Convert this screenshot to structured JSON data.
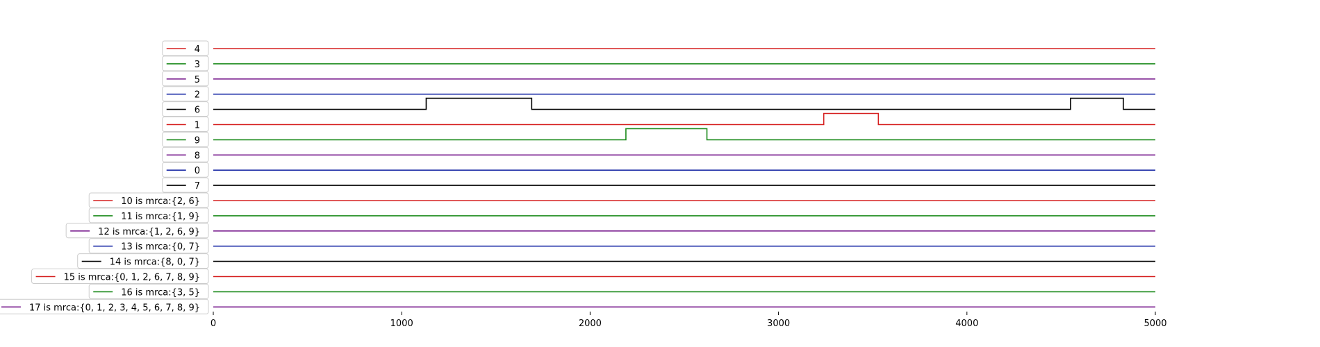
{
  "chart_data": {
    "type": "line",
    "title": "",
    "xlabel": "",
    "ylabel": "",
    "xlim": [
      0,
      5000
    ],
    "x_ticks": [
      "0",
      "1000",
      "2000",
      "3000",
      "4000",
      "5000"
    ],
    "x_tick_values": [
      0,
      1000,
      2000,
      3000,
      4000,
      5000
    ],
    "grid": false,
    "legend": "left, one entry per track",
    "series": [
      {
        "name": "4",
        "color": "#d62020",
        "steps": []
      },
      {
        "name": "3",
        "color": "#1a8a1a",
        "steps": []
      },
      {
        "name": "5",
        "color": "#7a1f8f",
        "steps": []
      },
      {
        "name": "2",
        "color": "#1f2fa8",
        "steps": []
      },
      {
        "name": "6",
        "color": "#000000",
        "steps": [
          [
            1130,
            1690
          ],
          [
            4550,
            4830
          ]
        ]
      },
      {
        "name": "1",
        "color": "#d62020",
        "steps": [
          [
            3240,
            3530
          ]
        ]
      },
      {
        "name": "9",
        "color": "#1a8a1a",
        "steps": [
          [
            2190,
            2620
          ]
        ]
      },
      {
        "name": "8",
        "color": "#7a1f8f",
        "steps": []
      },
      {
        "name": "0",
        "color": "#1f2fa8",
        "steps": []
      },
      {
        "name": "7",
        "color": "#000000",
        "steps": []
      },
      {
        "name": "10 is mrca:{2, 6}",
        "color": "#d62020",
        "steps": []
      },
      {
        "name": "11 is mrca:{1, 9}",
        "color": "#1a8a1a",
        "steps": []
      },
      {
        "name": "12 is mrca:{1, 2, 6, 9}",
        "color": "#7a1f8f",
        "steps": []
      },
      {
        "name": "13 is mrca:{0, 7}",
        "color": "#1f2fa8",
        "steps": []
      },
      {
        "name": "14 is mrca:{8, 0, 7}",
        "color": "#000000",
        "steps": []
      },
      {
        "name": "15 is mrca:{0, 1, 2, 6, 7, 8, 9}",
        "color": "#d62020",
        "steps": []
      },
      {
        "name": "16 is mrca:{3, 5}",
        "color": "#1a8a1a",
        "steps": []
      },
      {
        "name": "17 is mrca:{0, 1, 2, 3, 4, 5, 6, 7, 8, 9}",
        "color": "#7a1f8f",
        "steps": []
      }
    ]
  }
}
